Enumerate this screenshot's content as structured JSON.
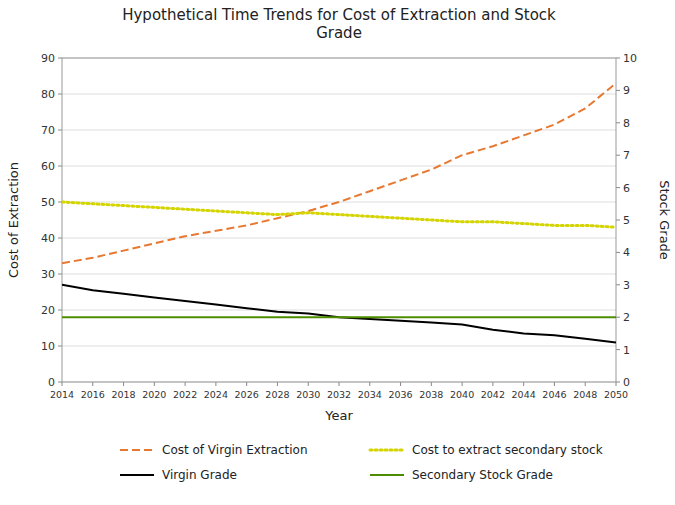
{
  "chart_data": {
    "type": "line",
    "title": "Hypothetical Time Trends for Cost of Extraction and Stock\nGrade",
    "x_label": "Year",
    "y_label": "Cost of Extraction",
    "y2_label": "Stock Grade",
    "x": [
      2014,
      2016,
      2018,
      2020,
      2022,
      2024,
      2026,
      2028,
      2030,
      2032,
      2034,
      2036,
      2038,
      2040,
      2042,
      2044,
      2046,
      2048,
      2050
    ],
    "xlim": [
      2014,
      2050
    ],
    "xticks": [
      2014,
      2016,
      2018,
      2020,
      2022,
      2024,
      2026,
      2028,
      2030,
      2032,
      2034,
      2036,
      2038,
      2040,
      2042,
      2044,
      2046,
      2048,
      2050
    ],
    "ylim": [
      0,
      90
    ],
    "yticks": [
      0,
      10,
      20,
      30,
      40,
      50,
      60,
      70,
      80,
      90
    ],
    "y2lim": [
      0,
      10
    ],
    "y2ticks": [
      0,
      1,
      2,
      3,
      4,
      5,
      6,
      7,
      8,
      9,
      10
    ],
    "grid": true,
    "legend": "bottom",
    "series": [
      {
        "name": "Cost of Virgin Extraction",
        "color": "#E87830",
        "line_style": "dashed",
        "values": [
          33,
          34.5,
          36.5,
          38.5,
          40.5,
          42.0,
          43.5,
          45.5,
          47.5,
          50.0,
          53.0,
          56.0,
          59.0,
          63.0,
          65.5,
          68.5,
          71.5,
          76.0,
          83.0
        ]
      },
      {
        "name": "Cost to extract secondary stock",
        "color": "#D4D400",
        "line_style": "dotted",
        "values": [
          50.0,
          49.5,
          49.0,
          48.5,
          48.0,
          47.5,
          47.0,
          46.5,
          47.0,
          46.5,
          46.0,
          45.5,
          45.0,
          44.5,
          44.5,
          44.0,
          43.5,
          43.5,
          43.0
        ]
      },
      {
        "name": "Virgin Grade",
        "color": "#000000",
        "line_style": "solid",
        "values": [
          27.0,
          25.5,
          24.5,
          23.5,
          22.5,
          21.5,
          20.5,
          19.5,
          19.0,
          18.0,
          17.5,
          17.0,
          16.5,
          16.0,
          14.5,
          13.5,
          13.0,
          12.0,
          11.0
        ]
      },
      {
        "name": "Secondary Stock Grade",
        "color": "#4C8C00",
        "line_style": "solid",
        "values": [
          18.0,
          18.0,
          18.0,
          18.0,
          18.0,
          18.0,
          18.0,
          18.0,
          18.0,
          18.0,
          18.0,
          18.0,
          18.0,
          18.0,
          18.0,
          18.0,
          18.0,
          18.0,
          18.0
        ]
      }
    ]
  }
}
